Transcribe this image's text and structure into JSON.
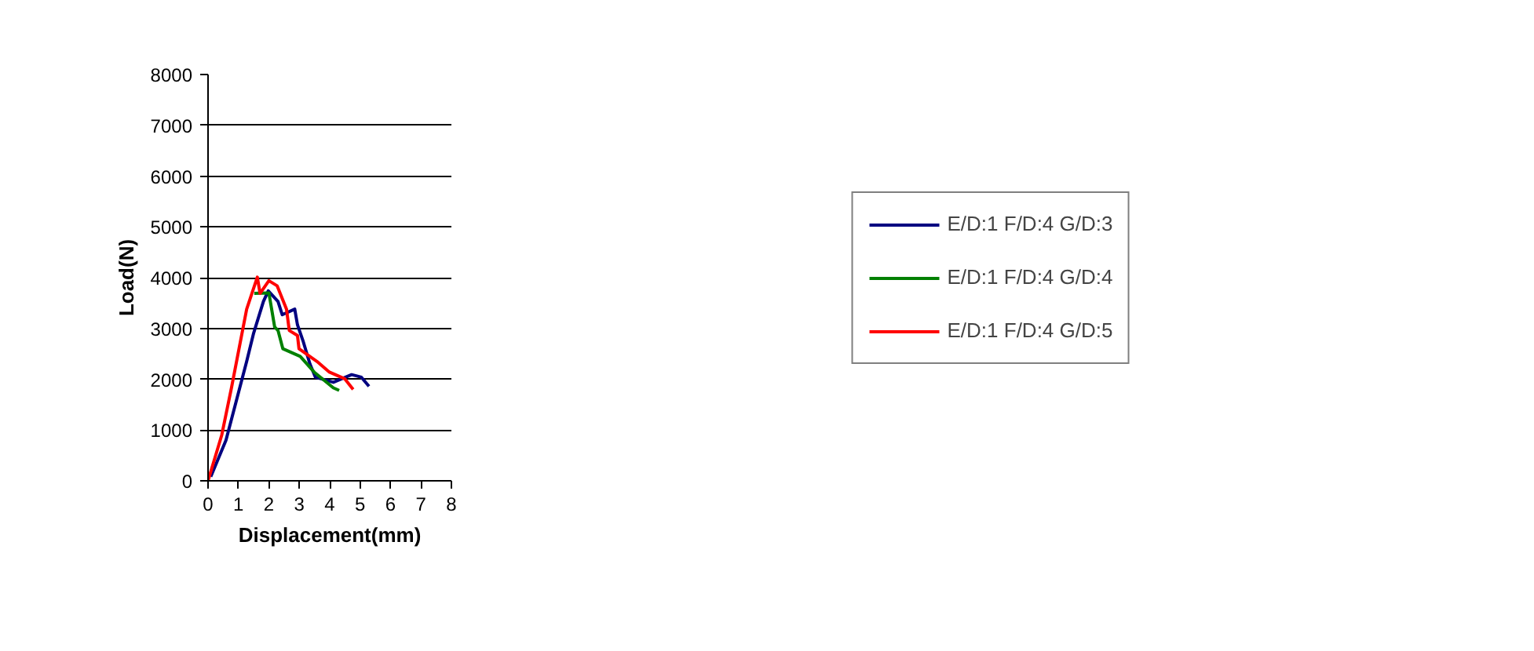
{
  "chart_data": {
    "type": "line",
    "xlabel": "Displacement(mm)",
    "ylabel": "Load(N)",
    "xlim": [
      0,
      8
    ],
    "ylim": [
      0,
      8000
    ],
    "xticks": [
      0,
      1,
      2,
      3,
      4,
      5,
      6,
      7,
      8
    ],
    "yticks": [
      0,
      1000,
      2000,
      3000,
      4000,
      5000,
      6000,
      7000,
      8000
    ],
    "grid": "y",
    "legend": "right",
    "line_style": "solid",
    "marker": "none",
    "series": [
      {
        "name": "E/D:1 F/D:4 G/D:3",
        "color": "#000080",
        "x": [
          0.09,
          0.59,
          1.27,
          1.5,
          1.82,
          1.98,
          2.3,
          2.44,
          2.85,
          2.94,
          3.12,
          3.35,
          3.53,
          4.12,
          4.72,
          5.04,
          5.29
        ],
        "values": [
          80,
          800,
          2350,
          2910,
          3530,
          3740,
          3530,
          3270,
          3380,
          3070,
          2760,
          2300,
          2040,
          1940,
          2090,
          2040,
          1860
        ]
      },
      {
        "name": "E/D:1 F/D:4 G/D:4",
        "color": "#008000",
        "x": [
          1.52,
          2.0,
          2.19,
          2.3,
          2.46,
          3.03,
          3.49,
          4.12,
          4.31
        ],
        "values": [
          3690,
          3700,
          3030,
          2960,
          2600,
          2450,
          2140,
          1830,
          1780
        ]
      },
      {
        "name": "E/D:1 F/D:4 G/D:5",
        "color": "#ff0000",
        "x": [
          0.0,
          0.45,
          0.77,
          1.27,
          1.62,
          1.71,
          2.0,
          2.27,
          2.58,
          2.67,
          2.94,
          2.99,
          3.58,
          3.99,
          4.49,
          4.77
        ],
        "values": [
          0,
          900,
          1830,
          3380,
          4010,
          3690,
          3940,
          3840,
          3380,
          2960,
          2860,
          2600,
          2350,
          2140,
          2010,
          1800
        ]
      }
    ]
  }
}
